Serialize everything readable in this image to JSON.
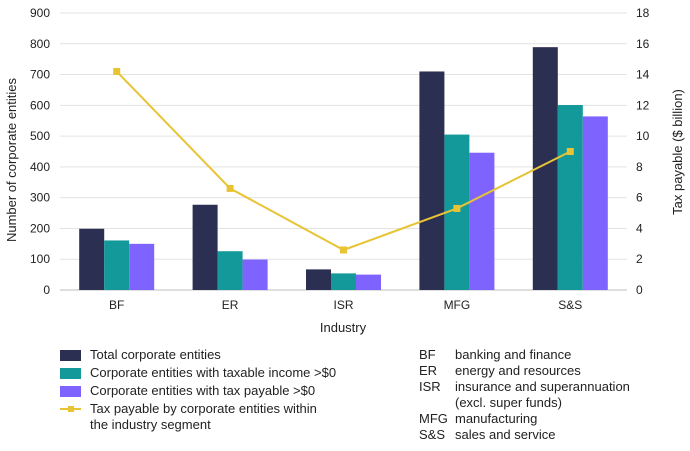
{
  "chart_data": {
    "type": "bar+line",
    "categories": [
      "BF",
      "ER",
      "ISR",
      "MFG",
      "S&S"
    ],
    "series": [
      {
        "name": "Total corporate entities",
        "type": "bar",
        "axis": "left",
        "color": "#2b2f52",
        "values": [
          199,
          277,
          67,
          710,
          789
        ]
      },
      {
        "name": "Corporate entities with taxable income >$0",
        "type": "bar",
        "axis": "left",
        "color": "#14999a",
        "values": [
          161,
          126,
          54,
          505,
          601
        ]
      },
      {
        "name": "Corporate entities with tax payable >$0",
        "type": "bar",
        "axis": "left",
        "color": "#7e63ff",
        "values": [
          150,
          99,
          50,
          446,
          564
        ]
      },
      {
        "name": "Tax payable by corporate entities within the industry segment",
        "type": "line",
        "axis": "right",
        "color": "#e8c334",
        "values": [
          14.2,
          6.6,
          2.6,
          5.3,
          9.0
        ]
      }
    ],
    "xlabel": "Industry",
    "ylabel": "Number of corporate entities",
    "y2label": "Tax payable ($ billion)",
    "ylim": [
      0,
      900
    ],
    "yticks": [
      "0",
      "100",
      "200",
      "300",
      "400",
      "500",
      "600",
      "700",
      "800",
      "900"
    ],
    "y2lim": [
      0,
      18
    ],
    "y2ticks": [
      "0",
      "2",
      "4",
      "6",
      "8",
      "10",
      "12",
      "14",
      "16",
      "18"
    ],
    "grid": true
  },
  "legend": {
    "items": [
      {
        "label": "Total corporate entities",
        "color": "#2b2f52"
      },
      {
        "label": "Corporate entities with taxable income >$0",
        "color": "#14999a"
      },
      {
        "label": "Corporate entities with tax payable >$0",
        "color": "#7e63ff"
      }
    ],
    "line_label_1": "Tax payable by corporate entities within",
    "line_label_2": "the industry segment",
    "line_color": "#e8c334"
  },
  "abbreviations": [
    {
      "code": "BF",
      "desc": "banking and finance"
    },
    {
      "code": "ER",
      "desc": "energy and resources"
    },
    {
      "code": "ISR",
      "desc": "insurance and superannuation"
    },
    {
      "code": "",
      "desc": "(excl. super funds)"
    },
    {
      "code": "MFG",
      "desc": "manufacturing"
    },
    {
      "code": "S&S",
      "desc": "sales and service"
    }
  ]
}
